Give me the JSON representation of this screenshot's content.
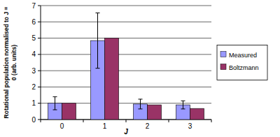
{
  "chart_data": {
    "type": "bar",
    "y_label": "Rotational population normalised to J = 0 (arb. units)",
    "x_label": "J",
    "categories": [
      "0",
      "1",
      "2",
      "3"
    ],
    "series": [
      {
        "name": "Measured",
        "color": "#9999ff",
        "values": [
          1,
          4.85,
          0.95,
          0.9
        ],
        "errors": [
          0.4,
          1.7,
          0.3,
          0.25
        ]
      },
      {
        "name": "Boltzmann",
        "color": "#993366",
        "values": [
          1,
          5.0,
          0.9,
          0.68
        ]
      }
    ],
    "ylim": [
      0,
      7
    ],
    "yticks": [
      0,
      1,
      2,
      3,
      4,
      5,
      6,
      7
    ],
    "grid": true,
    "legend": "right"
  }
}
